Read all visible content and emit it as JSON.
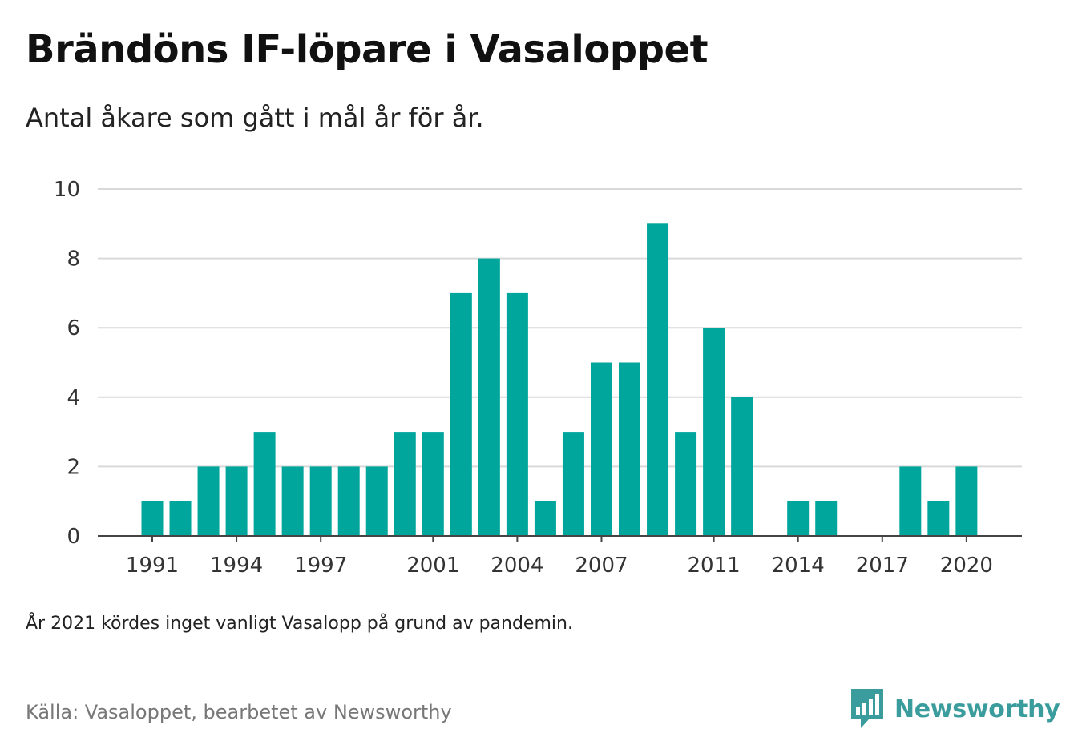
{
  "header": {
    "title": "Brändöns IF-löpare i Vasaloppet",
    "subtitle": "Antal åkare som gått i mål år för år."
  },
  "footer": {
    "note": "År 2021 kördes inget vanligt Vasalopp på grund av pandemin.",
    "source": "Källa: Vasaloppet, bearbetet av Newsworthy",
    "brand": "Newsworthy"
  },
  "colors": {
    "bar": "#00a69c",
    "grid": "#d9d9d9",
    "axis": "#444444",
    "brand": "#3a9c9c"
  },
  "icons": {
    "brand_logo": "bar-chart-speech-bubble-icon"
  },
  "chart_data": {
    "type": "bar",
    "categories": [
      1991,
      1992,
      1993,
      1994,
      1995,
      1996,
      1997,
      1998,
      1999,
      2000,
      2001,
      2002,
      2003,
      2004,
      2005,
      2006,
      2007,
      2008,
      2009,
      2010,
      2011,
      2012,
      2013,
      2014,
      2015,
      2016,
      2017,
      2018,
      2019,
      2020
    ],
    "values": [
      1,
      1,
      2,
      2,
      3,
      2,
      2,
      2,
      2,
      3,
      3,
      7,
      8,
      7,
      1,
      3,
      5,
      5,
      9,
      3,
      6,
      4,
      0,
      1,
      1,
      0,
      0,
      2,
      1,
      2
    ],
    "xtick_labels": [
      "1991",
      "1994",
      "1997",
      "2001",
      "2004",
      "2007",
      "2011",
      "2014",
      "2017",
      "2020"
    ],
    "yticks": [
      0,
      2,
      4,
      6,
      8,
      10
    ],
    "ylim": [
      0,
      10
    ],
    "grid": true,
    "legend": "none"
  }
}
